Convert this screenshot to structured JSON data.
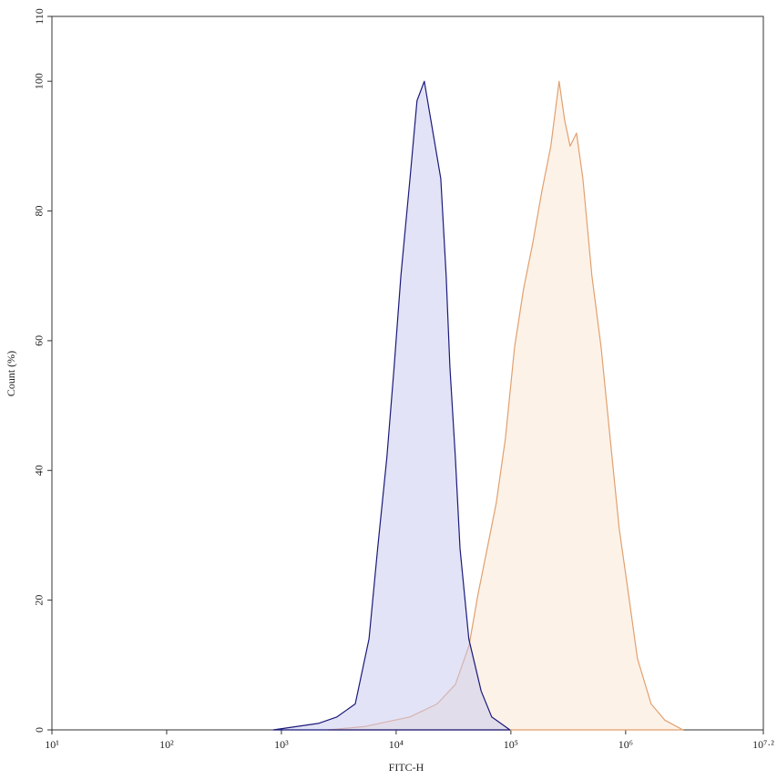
{
  "chart_data": {
    "type": "area",
    "x_label": "FITC-H",
    "y_label": "Count (%)",
    "xscale": "log",
    "xlim": [
      10,
      15848932
    ],
    "xticks": [
      {
        "value": 10,
        "label": "10¹"
      },
      {
        "value": 100,
        "label": "10²"
      },
      {
        "value": 1000,
        "label": "10³"
      },
      {
        "value": 10000,
        "label": "10⁴"
      },
      {
        "value": 100000,
        "label": "10⁵"
      },
      {
        "value": 1000000,
        "label": "10⁶"
      },
      {
        "value": 15848932,
        "label": "10⁷·²"
      }
    ],
    "ylim": [
      0,
      110
    ],
    "yticks": [
      0,
      20,
      40,
      60,
      80,
      100,
      110
    ],
    "series": [
      {
        "color": "#e0a070",
        "fill": "#fbe6d0",
        "x": [
          2540,
          5270,
          13150,
          22750,
          32800,
          43150,
          51800,
          62200,
          74600,
          89600,
          107600,
          129100,
          155000,
          186000,
          223000,
          263000,
          294000,
          328000,
          373000,
          424000,
          508000,
          611000,
          733000,
          880000,
          1057000,
          1268000,
          1667000,
          2193000,
          3160000
        ],
        "values": [
          0,
          0.5,
          2,
          4,
          7,
          13,
          21,
          28,
          35,
          45,
          59,
          68,
          75,
          83,
          90,
          100,
          94,
          90,
          92,
          85,
          70,
          59,
          45,
          31,
          21,
          11,
          4,
          1.5,
          0
        ]
      },
      {
        "color": "#1a1a7a",
        "fill": "#c8c8f0",
        "x": [
          850,
          2100,
          3050,
          4400,
          5800,
          6900,
          8300,
          9600,
          11000,
          13200,
          15200,
          17600,
          24500,
          27300,
          29400,
          32800,
          36000,
          43000,
          55000,
          68000,
          98000
        ],
        "values": [
          0,
          1,
          2,
          4,
          14,
          28,
          42,
          56,
          70,
          85,
          97,
          100,
          85,
          70,
          56,
          42,
          28,
          14,
          6,
          2,
          0
        ]
      }
    ]
  }
}
